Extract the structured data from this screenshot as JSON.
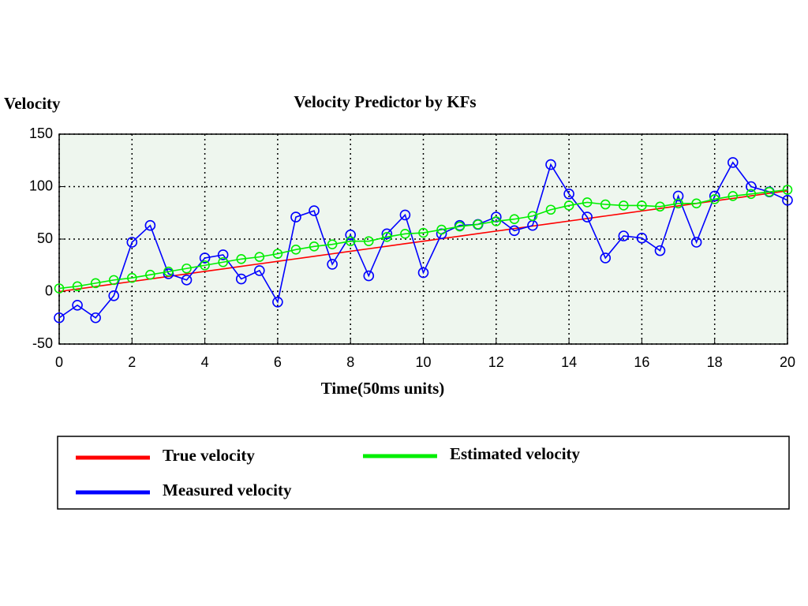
{
  "chart_data": {
    "type": "line",
    "title": "Velocity Predictor by KFs",
    "x_label": "Time(50ms units)",
    "y_label": "Velocity",
    "x": [
      0,
      0.5,
      1,
      1.5,
      2,
      2.5,
      3,
      3.5,
      4,
      4.5,
      5,
      5.5,
      6,
      6.5,
      7,
      7.5,
      8,
      8.5,
      9,
      9.5,
      10,
      10.5,
      11,
      11.5,
      12,
      12.5,
      13,
      13.5,
      14,
      14.5,
      15,
      15.5,
      16,
      16.5,
      17,
      17.5,
      18,
      18.5,
      19,
      19.5,
      20
    ],
    "series": [
      {
        "name": "True velocity",
        "color": "#ff0000",
        "marker": "none",
        "values": [
          0,
          2.4,
          4.8,
          7.2,
          9.6,
          12,
          14.4,
          16.8,
          19.2,
          21.6,
          24,
          26.4,
          28.8,
          31.2,
          33.6,
          36,
          38.4,
          40.8,
          43.2,
          45.6,
          48,
          50.4,
          52.8,
          55.2,
          57.6,
          60,
          62.4,
          64.8,
          67.2,
          69.6,
          72,
          74.4,
          76.8,
          79.2,
          81.6,
          84,
          86.4,
          88.8,
          91.2,
          93.6,
          96
        ]
      },
      {
        "name": "Measured velocity",
        "color": "#0000ff",
        "marker": "circle",
        "values": [
          -25,
          -13,
          -25,
          -4,
          47,
          63,
          17,
          11,
          32,
          35,
          12,
          20,
          -10,
          71,
          77,
          26,
          54,
          15,
          55,
          73,
          18,
          55,
          63,
          64,
          71,
          58,
          63,
          121,
          93,
          71,
          32,
          53,
          51,
          39,
          91,
          47,
          91,
          123,
          100,
          95,
          87
        ]
      },
      {
        "name": "Estimated velocity",
        "color": "#00ee00",
        "marker": "circle",
        "values": [
          3,
          5,
          8,
          11,
          13,
          16,
          19,
          22,
          25,
          28,
          31,
          33,
          36,
          40,
          43,
          45,
          48,
          48,
          52,
          55,
          56,
          59,
          62,
          64,
          67,
          69,
          72,
          78,
          82,
          85,
          83,
          82,
          82,
          81,
          84,
          84,
          88,
          91,
          93,
          95,
          97
        ]
      }
    ],
    "xlim": [
      0,
      20
    ],
    "xticks": [
      0,
      2,
      4,
      6,
      8,
      10,
      12,
      14,
      16,
      18,
      20
    ],
    "ylim": [
      -50,
      150
    ],
    "yticks": [
      -50,
      0,
      50,
      100,
      150
    ],
    "grid": true,
    "legend": "bottom"
  }
}
